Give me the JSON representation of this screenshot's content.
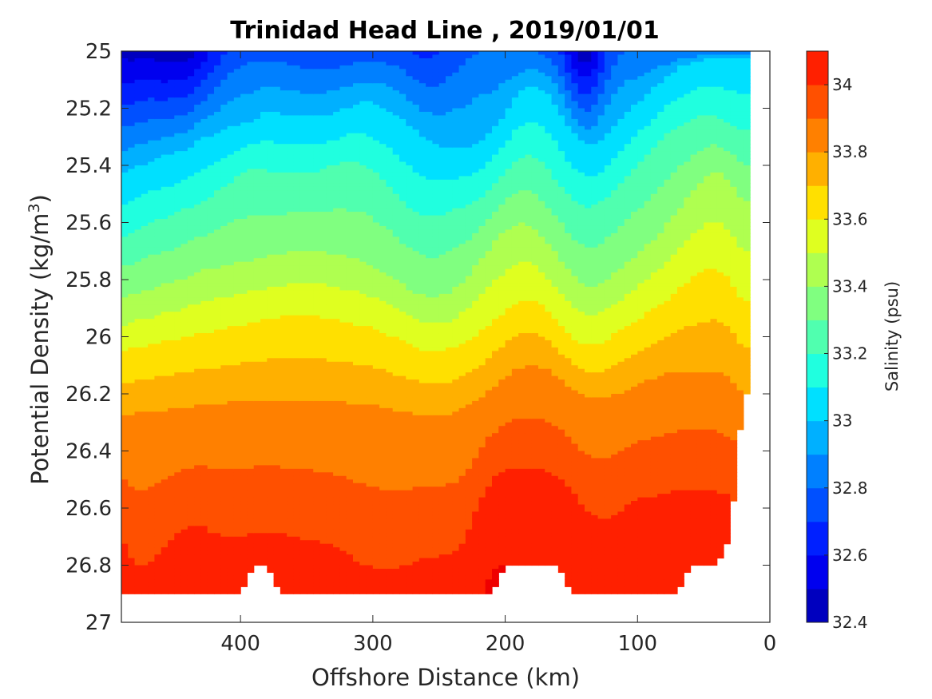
{
  "chart_data": {
    "type": "heatmap",
    "subtype": "filled-contour",
    "title": "Trinidad Head Line , 2019/01/01",
    "xlabel": "Offshore Distance (km)",
    "ylabel": "Potential Density (kg/m",
    "ylabel_superscript": "3",
    "ylabel_close": ")",
    "colorbar_label": "Salinity (psu)",
    "xlim": [
      490,
      0
    ],
    "ylim": [
      25,
      27
    ],
    "x_reversed": true,
    "y_reversed": true,
    "grid": false,
    "x_ticks": [
      400,
      300,
      200,
      100,
      0
    ],
    "y_ticks": [
      25,
      25.2,
      25.4,
      25.6,
      25.8,
      26,
      26.2,
      26.4,
      26.6,
      26.8,
      27
    ],
    "y_tick_labels": [
      "25",
      "25.2",
      "25.4",
      "25.6",
      "25.8",
      "26",
      "26.2",
      "26.4",
      "26.6",
      "26.8",
      "27"
    ],
    "colorbar": {
      "clim": [
        32.4,
        34.1
      ],
      "levels": [
        32.4,
        32.5,
        32.6,
        32.7,
        32.8,
        32.9,
        33.0,
        33.1,
        33.2,
        33.3,
        33.4,
        33.5,
        33.6,
        33.7,
        33.8,
        33.9,
        34.0,
        34.1
      ],
      "ticks": [
        32.4,
        32.6,
        32.8,
        33,
        33.2,
        33.4,
        33.6,
        33.8,
        34
      ],
      "tick_labels": [
        "32.4",
        "32.6",
        "32.8",
        "33",
        "33.2",
        "33.4",
        "33.6",
        "33.8",
        "34"
      ],
      "colors": [
        "#00008f",
        "#0000bf",
        "#0000ef",
        "#0020ff",
        "#0050ff",
        "#0080ff",
        "#00b0ff",
        "#00e0ff",
        "#20ffdf",
        "#50ffaf",
        "#80ff80",
        "#afff50",
        "#dfff20",
        "#ffe000",
        "#ffb000",
        "#ff8000",
        "#ff5000",
        "#ff2000",
        "#ef0000",
        "#bf0000",
        "#8f0000"
      ]
    },
    "contour_x": [
      490,
      480,
      470,
      460,
      450,
      440,
      430,
      420,
      410,
      400,
      390,
      380,
      370,
      360,
      350,
      340,
      330,
      320,
      310,
      300,
      290,
      280,
      270,
      260,
      250,
      240,
      230,
      220,
      210,
      200,
      190,
      180,
      170,
      160,
      150,
      140,
      130,
      120,
      110,
      100,
      90,
      80,
      70,
      60,
      50,
      40,
      30,
      20
    ],
    "contour_lines": [
      {
        "level": 32.8,
        "y": [
          25.27,
          25.26,
          25.24,
          25.24,
          25.23,
          25.22,
          25.18,
          25.14,
          25.09,
          25.05,
          25.04,
          25.03,
          25.04,
          25.05,
          25.06,
          25.07,
          25.06,
          25.05,
          25.04,
          25.03,
          25.04,
          25.06,
          25.09,
          25.12,
          25.12,
          25.08,
          25.04,
          25.0,
          25.0,
          25.0,
          25.0,
          25.0,
          25.02,
          25.06,
          25.16,
          25.22,
          25.18,
          25.07,
          25.0,
          25.0,
          25.0,
          25.0,
          25.0,
          25.0,
          25.0,
          25.0,
          25.0,
          25.0
        ]
      },
      {
        "level": 33.0,
        "y": [
          25.43,
          25.41,
          25.39,
          25.37,
          25.36,
          25.34,
          25.31,
          25.29,
          25.27,
          25.26,
          25.24,
          25.21,
          25.22,
          25.23,
          25.23,
          25.23,
          25.22,
          25.2,
          25.18,
          25.18,
          25.2,
          25.23,
          25.27,
          25.31,
          25.33,
          25.34,
          25.34,
          25.32,
          25.28,
          25.22,
          25.15,
          25.12,
          25.14,
          25.2,
          25.28,
          25.33,
          25.32,
          25.27,
          25.22,
          25.18,
          25.14,
          25.1,
          25.06,
          25.04,
          25.03,
          25.02,
          25.02,
          25.02
        ]
      },
      {
        "level": 33.2,
        "y": [
          25.65,
          25.63,
          25.6,
          25.59,
          25.57,
          25.55,
          25.53,
          25.5,
          25.47,
          25.43,
          25.41,
          25.42,
          25.43,
          25.43,
          25.43,
          25.42,
          25.4,
          25.39,
          25.39,
          25.42,
          25.46,
          25.51,
          25.56,
          25.58,
          25.58,
          25.56,
          25.54,
          25.52,
          25.47,
          25.42,
          25.38,
          25.36,
          25.4,
          25.46,
          25.52,
          25.55,
          25.54,
          25.5,
          25.45,
          25.4,
          25.35,
          25.3,
          25.27,
          25.24,
          25.22,
          25.23,
          25.25,
          25.28
        ]
      },
      {
        "level": 33.4,
        "y": [
          25.87,
          25.85,
          25.84,
          25.82,
          25.81,
          25.79,
          25.77,
          25.76,
          25.75,
          25.74,
          25.73,
          25.72,
          25.71,
          25.7,
          25.7,
          25.7,
          25.71,
          25.72,
          25.73,
          25.75,
          25.78,
          25.81,
          25.84,
          25.86,
          25.86,
          25.84,
          25.8,
          25.74,
          25.68,
          25.63,
          25.6,
          25.61,
          25.66,
          25.72,
          25.78,
          25.82,
          25.82,
          25.79,
          25.75,
          25.71,
          25.67,
          25.62,
          25.56,
          25.5,
          25.45,
          25.42,
          25.46,
          25.53
        ]
      },
      {
        "level": 33.6,
        "y": [
          26.05,
          26.04,
          26.03,
          26.02,
          26.01,
          26.0,
          25.99,
          25.98,
          25.97,
          25.96,
          25.95,
          25.94,
          25.93,
          25.93,
          25.93,
          25.93,
          25.94,
          25.95,
          25.96,
          25.97,
          25.99,
          26.01,
          26.03,
          26.05,
          26.05,
          26.04,
          26.02,
          25.99,
          25.95,
          25.91,
          25.88,
          25.87,
          25.9,
          25.95,
          26.0,
          26.03,
          26.03,
          26.0,
          25.97,
          25.94,
          25.91,
          25.88,
          25.84,
          25.8,
          25.77,
          25.76,
          25.8,
          25.88
        ]
      },
      {
        "level": 33.8,
        "y": [
          26.28,
          26.27,
          26.26,
          26.26,
          26.25,
          26.25,
          26.24,
          26.24,
          26.23,
          26.23,
          26.22,
          26.22,
          26.22,
          26.22,
          26.22,
          26.22,
          26.23,
          26.23,
          26.24,
          26.24,
          26.25,
          26.26,
          26.27,
          26.28,
          26.28,
          26.27,
          26.25,
          26.22,
          26.18,
          26.14,
          26.11,
          26.1,
          26.11,
          26.14,
          26.18,
          26.21,
          26.22,
          26.21,
          26.19,
          26.17,
          26.15,
          26.13,
          26.12,
          26.12,
          26.12,
          26.12,
          26.15,
          26.2
        ]
      },
      {
        "level": 34.0,
        "y": [
          26.7,
          26.8,
          26.8,
          26.75,
          26.7,
          26.67,
          26.66,
          26.69,
          26.7,
          26.7,
          26.69,
          26.68,
          26.69,
          26.7,
          26.71,
          26.72,
          26.73,
          26.76,
          26.79,
          26.81,
          26.82,
          26.81,
          26.79,
          26.77,
          26.77,
          26.76,
          26.71,
          26.58,
          26.5,
          26.47,
          26.46,
          26.46,
          26.47,
          26.49,
          26.54,
          26.6,
          26.64,
          26.64,
          26.6,
          26.57,
          26.56,
          26.55,
          26.54,
          26.54,
          26.54,
          26.54,
          26.56,
          26.6
        ]
      }
    ],
    "bottom_depth_y": [
      26.9,
      26.9,
      26.9,
      26.9,
      26.9,
      26.9,
      26.9,
      26.9,
      26.9,
      26.9,
      26.8,
      26.8,
      26.9,
      26.9,
      26.9,
      26.9,
      26.9,
      26.9,
      26.9,
      26.9,
      26.9,
      26.9,
      26.9,
      26.9,
      26.9,
      26.9,
      26.9,
      26.9,
      26.9,
      26.8,
      26.8,
      26.8,
      26.8,
      26.8,
      26.9,
      26.9,
      26.9,
      26.9,
      26.9,
      26.9,
      26.9,
      26.9,
      26.9,
      26.8,
      26.8,
      26.8,
      26.7,
      26.2
    ],
    "data_coverage_x": [
      490,
      20
    ]
  }
}
